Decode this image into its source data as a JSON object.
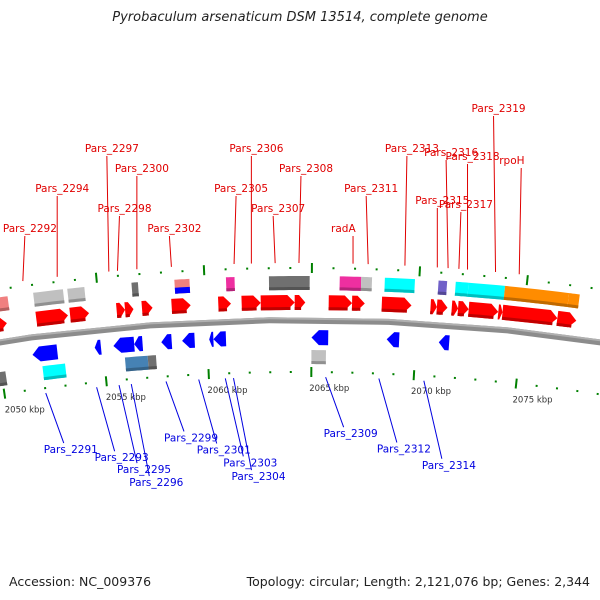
{
  "title": "Pyrobaculum arsenaticum DSM 13514, complete genome",
  "footer": {
    "accession": "Accession: NC_009376",
    "summary": "Topology: circular; Length: 2,121,076 bp; Genes: 2,344"
  },
  "colors": {
    "forward_gene": "#ff0000",
    "reverse_gene": "#0000ff",
    "top_label": "#e00000",
    "bottom_label": "#0000e0",
    "tick": "#008000",
    "backbone": "#8c8c8c"
  },
  "scale": {
    "unit": "kbp",
    "major_ticks_kbp": [
      2050,
      2055,
      2060,
      2065,
      2070,
      2075
    ],
    "major_tick_labels": [
      "2050 kbp",
      "2055 kbp",
      "2060 kbp",
      "2065 kbp",
      "2070 kbp",
      "2075 kbp"
    ]
  },
  "top_labels": [
    {
      "text": "Pars_2292",
      "kbp": 2051.6
    },
    {
      "text": "Pars_2294",
      "kbp": 2053.2
    },
    {
      "text": "Pars_2297",
      "kbp": 2055.6
    },
    {
      "text": "Pars_2298",
      "kbp": 2056.0
    },
    {
      "text": "Pars_2300",
      "kbp": 2056.9
    },
    {
      "text": "Pars_2302",
      "kbp": 2058.5
    },
    {
      "text": "Pars_2305",
      "kbp": 2061.4
    },
    {
      "text": "Pars_2306",
      "kbp": 2062.2
    },
    {
      "text": "Pars_2307",
      "kbp": 2063.3
    },
    {
      "text": "Pars_2308",
      "kbp": 2064.4
    },
    {
      "text": "radA",
      "kbp": 2066.9
    },
    {
      "text": "Pars_2311",
      "kbp": 2067.6
    },
    {
      "text": "Pars_2313",
      "kbp": 2069.3
    },
    {
      "text": "Pars_2315",
      "kbp": 2070.8
    },
    {
      "text": "Pars_2316",
      "kbp": 2071.3
    },
    {
      "text": "Pars_2317",
      "kbp": 2071.8
    },
    {
      "text": "Pars_2318",
      "kbp": 2072.2
    },
    {
      "text": "Pars_2319",
      "kbp": 2073.5
    },
    {
      "text": "rpoH",
      "kbp": 2074.6
    }
  ],
  "bottom_labels": [
    {
      "text": "Pars_2291",
      "kbp": 2052.0
    },
    {
      "text": "Pars_2293",
      "kbp": 2054.5
    },
    {
      "text": "Pars_2295",
      "kbp": 2055.6
    },
    {
      "text": "Pars_2296",
      "kbp": 2056.2
    },
    {
      "text": "Pars_2299",
      "kbp": 2057.9
    },
    {
      "text": "Pars_2301",
      "kbp": 2059.5
    },
    {
      "text": "Pars_2303",
      "kbp": 2060.8
    },
    {
      "text": "Pars_2304",
      "kbp": 2061.2
    },
    {
      "text": "Pars_2309",
      "kbp": 2065.7
    },
    {
      "text": "Pars_2312",
      "kbp": 2068.3
    },
    {
      "text": "Pars_2314",
      "kbp": 2070.5
    }
  ],
  "genes_forward": [
    {
      "start": 2049.4,
      "end": 2050.6
    },
    {
      "start": 2052.0,
      "end": 2053.5
    },
    {
      "start": 2053.6,
      "end": 2054.5
    },
    {
      "start": 2055.8,
      "end": 2056.2
    },
    {
      "start": 2056.2,
      "end": 2056.6
    },
    {
      "start": 2057.0,
      "end": 2057.5
    },
    {
      "start": 2058.4,
      "end": 2059.3
    },
    {
      "start": 2060.6,
      "end": 2061.2
    },
    {
      "start": 2061.7,
      "end": 2062.6
    },
    {
      "start": 2062.6,
      "end": 2064.2
    },
    {
      "start": 2064.2,
      "end": 2064.7
    },
    {
      "start": 2065.8,
      "end": 2066.9
    },
    {
      "start": 2066.9,
      "end": 2067.5
    },
    {
      "start": 2068.3,
      "end": 2069.7
    },
    {
      "start": 2070.6,
      "end": 2070.9
    },
    {
      "start": 2070.9,
      "end": 2071.4
    },
    {
      "start": 2071.6,
      "end": 2071.9
    },
    {
      "start": 2071.9,
      "end": 2072.4
    },
    {
      "start": 2072.4,
      "end": 2073.8
    },
    {
      "start": 2073.8,
      "end": 2074.0
    },
    {
      "start": 2074.0,
      "end": 2076.6
    },
    {
      "start": 2076.6,
      "end": 2077.5
    }
  ],
  "genes_reverse": [
    {
      "start": 2048.6,
      "end": 2049.3
    },
    {
      "start": 2049.3,
      "end": 2049.8
    },
    {
      "start": 2051.6,
      "end": 2052.8
    },
    {
      "start": 2054.6,
      "end": 2054.9
    },
    {
      "start": 2055.5,
      "end": 2056.5
    },
    {
      "start": 2056.5,
      "end": 2056.9
    },
    {
      "start": 2057.8,
      "end": 2058.3
    },
    {
      "start": 2058.8,
      "end": 2059.4
    },
    {
      "start": 2060.1,
      "end": 2060.3
    },
    {
      "start": 2060.3,
      "end": 2060.9
    },
    {
      "start": 2065.0,
      "end": 2065.8
    },
    {
      "start": 2068.6,
      "end": 2069.2
    },
    {
      "start": 2071.1,
      "end": 2071.6
    }
  ],
  "features_top": [
    {
      "start": 2049.6,
      "end": 2050.8,
      "color": "#f08080"
    },
    {
      "start": 2052.0,
      "end": 2053.4,
      "color": "#c0c0c0"
    },
    {
      "start": 2053.6,
      "end": 2054.4,
      "color": "#c0c0c0"
    },
    {
      "start": 2056.6,
      "end": 2056.9,
      "color": "#707070"
    },
    {
      "start": 2058.6,
      "end": 2059.3,
      "color": "#f08080"
    },
    {
      "start": 2061.0,
      "end": 2061.4,
      "color": "#ee2fa0"
    },
    {
      "start": 2063.0,
      "end": 2064.4,
      "color": "#707070"
    },
    {
      "start": 2064.4,
      "end": 2064.9,
      "color": "#707070"
    },
    {
      "start": 2066.3,
      "end": 2067.3,
      "color": "#ee2fa0"
    },
    {
      "start": 2067.3,
      "end": 2067.8,
      "color": "#c0c0c0"
    },
    {
      "start": 2068.4,
      "end": 2069.8,
      "color": "#00ffff"
    },
    {
      "start": 2070.9,
      "end": 2071.3,
      "color": "#7060c8"
    },
    {
      "start": 2071.7,
      "end": 2072.3,
      "color": "#00ffff"
    },
    {
      "start": 2072.3,
      "end": 2074.0,
      "color": "#00ffff"
    },
    {
      "start": 2074.0,
      "end": 2077.0,
      "color": "#ff8c00"
    },
    {
      "start": 2077.0,
      "end": 2077.5,
      "color": "#ff8c00"
    }
  ],
  "features_top_bluebar": [
    {
      "start": 2058.6,
      "end": 2059.3,
      "color": "#0000ff"
    }
  ],
  "features_bottom": [
    {
      "start": 2048.6,
      "end": 2049.6,
      "color": "#7060c8"
    },
    {
      "start": 2049.6,
      "end": 2050.2,
      "color": "#707070"
    },
    {
      "start": 2052.0,
      "end": 2053.1,
      "color": "#00ffff"
    },
    {
      "start": 2056.0,
      "end": 2057.1,
      "color": "#4682b4"
    },
    {
      "start": 2057.1,
      "end": 2057.5,
      "color": "#707070"
    },
    {
      "start": 2065.0,
      "end": 2065.7,
      "color": "#c0c0c0"
    }
  ]
}
